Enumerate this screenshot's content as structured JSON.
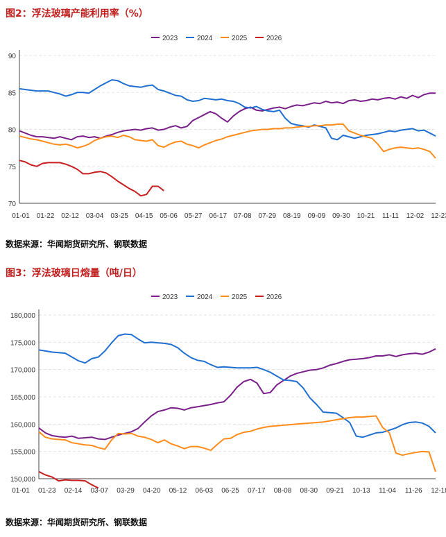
{
  "colors": {
    "s2023": "#7a1f8a",
    "s2024": "#1f6fd0",
    "s2025": "#ff8c1a",
    "s2026": "#c81e1e",
    "title": "#c0211f"
  },
  "chart_data": [
    {
      "type": "line",
      "title": "图2：浮法玻璃产能利用率（%）",
      "source": "数据来源：华闻期货研究所、钢联数据",
      "legend_position": "top",
      "grid": true,
      "ylim": [
        70,
        90
      ],
      "yticks": [
        "90",
        "85",
        "80",
        "75",
        "70"
      ],
      "ytick_values": [
        90,
        85,
        80,
        75,
        70
      ],
      "xticks": [
        "01-01",
        "01-22",
        "02-12",
        "03-04",
        "03-25",
        "04-15",
        "05-06",
        "05-27",
        "06-17",
        "07-08",
        "07-29",
        "08-19",
        "09-09",
        "09-30",
        "10-21",
        "11-11",
        "12-02",
        "12-23"
      ],
      "series": [
        {
          "name": "2023",
          "key": "s2023",
          "x": [
            0,
            5,
            10,
            15,
            20,
            25,
            30,
            35,
            40,
            45,
            50,
            55,
            60,
            65,
            70,
            75,
            80,
            85,
            90,
            95,
            100,
            105,
            110,
            115,
            120,
            125,
            130,
            135,
            140,
            145,
            150,
            155,
            160,
            165,
            170,
            175,
            180,
            185,
            190,
            195,
            200,
            205,
            210,
            215,
            220,
            225,
            230,
            235,
            240,
            245,
            250,
            255,
            260,
            265,
            270,
            275,
            280,
            285,
            290,
            295,
            300,
            305,
            310,
            315,
            320,
            325,
            330,
            335,
            340,
            345,
            350,
            355,
            360
          ],
          "y": [
            79.8,
            79.5,
            79.2,
            79.0,
            79.0,
            78.9,
            78.8,
            79.0,
            78.8,
            78.6,
            79.0,
            79.1,
            78.9,
            79.0,
            78.8,
            79.1,
            79.3,
            79.6,
            79.8,
            79.9,
            80.0,
            79.9,
            80.1,
            80.2,
            79.9,
            80.0,
            80.3,
            80.5,
            80.2,
            80.4,
            81.2,
            81.6,
            82.0,
            82.4,
            82.1,
            81.5,
            81.0,
            81.8,
            82.4,
            82.8,
            83.0,
            82.6,
            82.5,
            82.7,
            82.9,
            83.0,
            82.8,
            83.1,
            83.3,
            83.2,
            83.4,
            83.6,
            83.5,
            83.8,
            83.6,
            83.7,
            83.5,
            83.9,
            84.0,
            83.8,
            83.9,
            84.1,
            84.0,
            84.2,
            84.3,
            84.1,
            84.4,
            84.2,
            84.6,
            84.3,
            84.7,
            84.9,
            84.9
          ]
        },
        {
          "name": "2024",
          "key": "s2024",
          "x": [
            0,
            5,
            10,
            15,
            20,
            25,
            30,
            35,
            40,
            45,
            50,
            55,
            60,
            65,
            70,
            75,
            80,
            85,
            90,
            95,
            100,
            105,
            110,
            115,
            120,
            125,
            130,
            135,
            140,
            145,
            150,
            155,
            160,
            165,
            170,
            175,
            180,
            185,
            190,
            195,
            200,
            205,
            210,
            215,
            220,
            225,
            230,
            235,
            240,
            245,
            250,
            255,
            260,
            265,
            270,
            275,
            280,
            285,
            290,
            295,
            300,
            305,
            310,
            315,
            320,
            325,
            330,
            335,
            340,
            345,
            350,
            355,
            360
          ],
          "y": [
            85.5,
            85.4,
            85.3,
            85.2,
            85.2,
            85.2,
            85.0,
            84.8,
            84.5,
            84.7,
            85.0,
            85.0,
            84.9,
            85.4,
            85.9,
            86.3,
            86.7,
            86.6,
            86.2,
            85.9,
            85.8,
            85.7,
            85.9,
            86.0,
            85.4,
            85.2,
            84.9,
            84.6,
            84.5,
            84.0,
            83.8,
            83.9,
            84.2,
            84.1,
            84.0,
            84.1,
            83.9,
            83.8,
            83.5,
            83.0,
            82.9,
            83.1,
            82.7,
            82.5,
            82.4,
            82.6,
            81.5,
            80.8,
            80.6,
            80.5,
            80.3,
            80.6,
            80.4,
            80.2,
            78.8,
            78.6,
            79.2,
            79.0,
            78.8,
            79.0,
            79.2,
            79.3,
            79.4,
            79.6,
            79.8,
            79.7,
            79.9,
            80.0,
            80.1,
            79.8,
            79.9,
            79.5,
            79.1
          ]
        },
        {
          "name": "2025",
          "key": "s2025",
          "x": [
            0,
            5,
            10,
            15,
            20,
            25,
            30,
            35,
            40,
            45,
            50,
            55,
            60,
            65,
            70,
            75,
            80,
            85,
            90,
            95,
            100,
            105,
            110,
            115,
            120,
            125,
            130,
            135,
            140,
            145,
            150,
            155,
            160,
            165,
            170,
            175,
            180,
            185,
            190,
            195,
            200,
            205,
            210,
            215,
            220,
            225,
            230,
            235,
            240,
            245,
            250,
            255,
            260,
            265,
            270,
            275,
            280,
            285,
            290,
            295,
            300,
            305,
            310,
            315,
            320,
            325,
            330,
            335,
            340,
            345,
            350,
            355,
            360
          ],
          "y": [
            79.1,
            78.9,
            78.7,
            78.6,
            78.4,
            78.2,
            78.0,
            77.9,
            78.0,
            77.8,
            77.5,
            77.7,
            78.0,
            78.5,
            78.8,
            79.0,
            79.1,
            78.9,
            79.2,
            79.0,
            78.6,
            78.5,
            78.4,
            78.6,
            77.8,
            77.6,
            78.0,
            78.3,
            78.4,
            78.0,
            77.8,
            77.5,
            77.9,
            78.2,
            78.5,
            78.7,
            79.0,
            79.2,
            79.4,
            79.6,
            79.8,
            79.9,
            80.0,
            80.0,
            80.1,
            80.1,
            80.2,
            80.2,
            80.3,
            80.4,
            80.4,
            80.5,
            80.5,
            80.6,
            80.6,
            80.7,
            80.7,
            79.8,
            79.5,
            79.2,
            79.0,
            78.8,
            78.0,
            77.0,
            77.3,
            77.5,
            77.6,
            77.5,
            77.4,
            77.5,
            77.3,
            77.0,
            76.1
          ]
        },
        {
          "name": "2026",
          "key": "s2026",
          "x": [
            0,
            5,
            10,
            15,
            20,
            25,
            30,
            35,
            40,
            45,
            50,
            55,
            60,
            65,
            70,
            75,
            80,
            85,
            90,
            95,
            100,
            105,
            110,
            115,
            120,
            125
          ],
          "y": [
            75.8,
            75.6,
            75.2,
            75.0,
            75.4,
            75.5,
            75.5,
            75.5,
            75.3,
            75.0,
            74.6,
            74.0,
            74.0,
            74.2,
            74.3,
            74.1,
            73.6,
            73.0,
            72.5,
            72.0,
            71.6,
            71.0,
            71.2,
            72.3,
            72.3,
            71.7
          ]
        }
      ]
    },
    {
      "type": "line",
      "title": "图3：浮法玻璃日熔量（吨/日）",
      "source": "数据来源：华闻期货研究所、钢联数据",
      "legend_position": "top",
      "grid": true,
      "ylim": [
        150000,
        180000
      ],
      "yticks": [
        "180,000",
        "175,000",
        "170,000",
        "165,000",
        "160,000",
        "155,000",
        "150,000"
      ],
      "ytick_values": [
        180000,
        175000,
        170000,
        165000,
        160000,
        155000,
        150000
      ],
      "xticks": [
        "01-01",
        "01-23",
        "02-14",
        "03-07",
        "03-29",
        "04-20",
        "05-12",
        "06-03",
        "06-25",
        "07-17",
        "08-08",
        "08-30",
        "09-21",
        "10-13",
        "11-04",
        "11-26",
        "12-18"
      ],
      "series": [
        {
          "name": "2023",
          "key": "s2023",
          "x": [
            0,
            6,
            12,
            18,
            24,
            30,
            36,
            42,
            48,
            54,
            60,
            66,
            72,
            78,
            84,
            90,
            96,
            102,
            108,
            114,
            120,
            126,
            132,
            138,
            144,
            150,
            156,
            162,
            168,
            174,
            180,
            186,
            192,
            198,
            204,
            210,
            216,
            222,
            228,
            234,
            240,
            246,
            252,
            258,
            264,
            270,
            276,
            282,
            288,
            294,
            300,
            306,
            312,
            318,
            324,
            330,
            336,
            342,
            348,
            354,
            360
          ],
          "y": [
            159300,
            158400,
            157900,
            157700,
            157600,
            157800,
            157400,
            157500,
            157600,
            157300,
            157200,
            157600,
            158000,
            158300,
            158600,
            159200,
            160400,
            161500,
            162300,
            162600,
            163000,
            162900,
            162600,
            163000,
            163200,
            163400,
            163600,
            163900,
            164100,
            165300,
            166800,
            167800,
            168200,
            167500,
            165600,
            165800,
            167200,
            168000,
            168800,
            169300,
            169600,
            169900,
            170000,
            170300,
            170800,
            171100,
            171500,
            171800,
            171900,
            172000,
            172200,
            172500,
            172500,
            172700,
            172400,
            172700,
            172900,
            173000,
            172800,
            173200,
            173800
          ]
        },
        {
          "name": "2024",
          "key": "s2024",
          "x": [
            0,
            6,
            12,
            18,
            24,
            30,
            36,
            42,
            48,
            54,
            60,
            66,
            72,
            78,
            84,
            90,
            96,
            102,
            108,
            114,
            120,
            126,
            132,
            138,
            144,
            150,
            156,
            162,
            168,
            174,
            180,
            186,
            192,
            198,
            204,
            210,
            216,
            222,
            228,
            234,
            240,
            246,
            252,
            258,
            264,
            270,
            276,
            282,
            288,
            294,
            300,
            306,
            312,
            318,
            324,
            330,
            336,
            342,
            348,
            354,
            360
          ],
          "y": [
            173600,
            173400,
            173200,
            173100,
            173000,
            172300,
            171600,
            171200,
            172000,
            172300,
            173400,
            174900,
            176200,
            176500,
            176400,
            175600,
            174900,
            175000,
            174900,
            174800,
            174600,
            174000,
            173000,
            172200,
            171700,
            171500,
            170900,
            170400,
            170500,
            170400,
            170300,
            170300,
            170300,
            170400,
            170000,
            169500,
            168800,
            168100,
            168000,
            167800,
            166600,
            164800,
            163600,
            162200,
            162100,
            162000,
            161200,
            160300,
            157800,
            157600,
            158000,
            158400,
            158500,
            158900,
            159300,
            159900,
            160300,
            160400,
            160200,
            159600,
            158400
          ]
        },
        {
          "name": "2025",
          "key": "s2025",
          "x": [
            0,
            6,
            12,
            18,
            24,
            30,
            36,
            42,
            48,
            54,
            60,
            66,
            72,
            78,
            84,
            90,
            96,
            102,
            108,
            114,
            120,
            126,
            132,
            138,
            144,
            150,
            156,
            162,
            168,
            174,
            180,
            186,
            192,
            198,
            204,
            210,
            216,
            222,
            228,
            234,
            240,
            246,
            252,
            258,
            264,
            270,
            276,
            282,
            288,
            294,
            300,
            306,
            312,
            318,
            324,
            330,
            336,
            342,
            348,
            354,
            360
          ],
          "y": [
            158600,
            157600,
            157300,
            157200,
            157100,
            156600,
            156400,
            156200,
            156100,
            155700,
            155400,
            157100,
            158300,
            158200,
            158300,
            157800,
            157600,
            157200,
            156600,
            157100,
            156400,
            156000,
            155500,
            155900,
            155900,
            155600,
            155200,
            156300,
            157300,
            157400,
            158100,
            158500,
            158700,
            159100,
            159400,
            159600,
            159700,
            159800,
            159900,
            160000,
            160100,
            160200,
            160300,
            160400,
            160600,
            160800,
            161000,
            161200,
            161300,
            161300,
            161400,
            161500,
            159400,
            158400,
            154700,
            154300,
            154600,
            154800,
            155000,
            154900,
            151300
          ]
        },
        {
          "name": "2026",
          "key": "s2026",
          "x": [
            0,
            6,
            12,
            18,
            24,
            30,
            36,
            42,
            48,
            54
          ],
          "y": [
            151300,
            150700,
            150300,
            149600,
            149800,
            149700,
            149700,
            149600,
            148900,
            148300
          ]
        }
      ]
    }
  ]
}
